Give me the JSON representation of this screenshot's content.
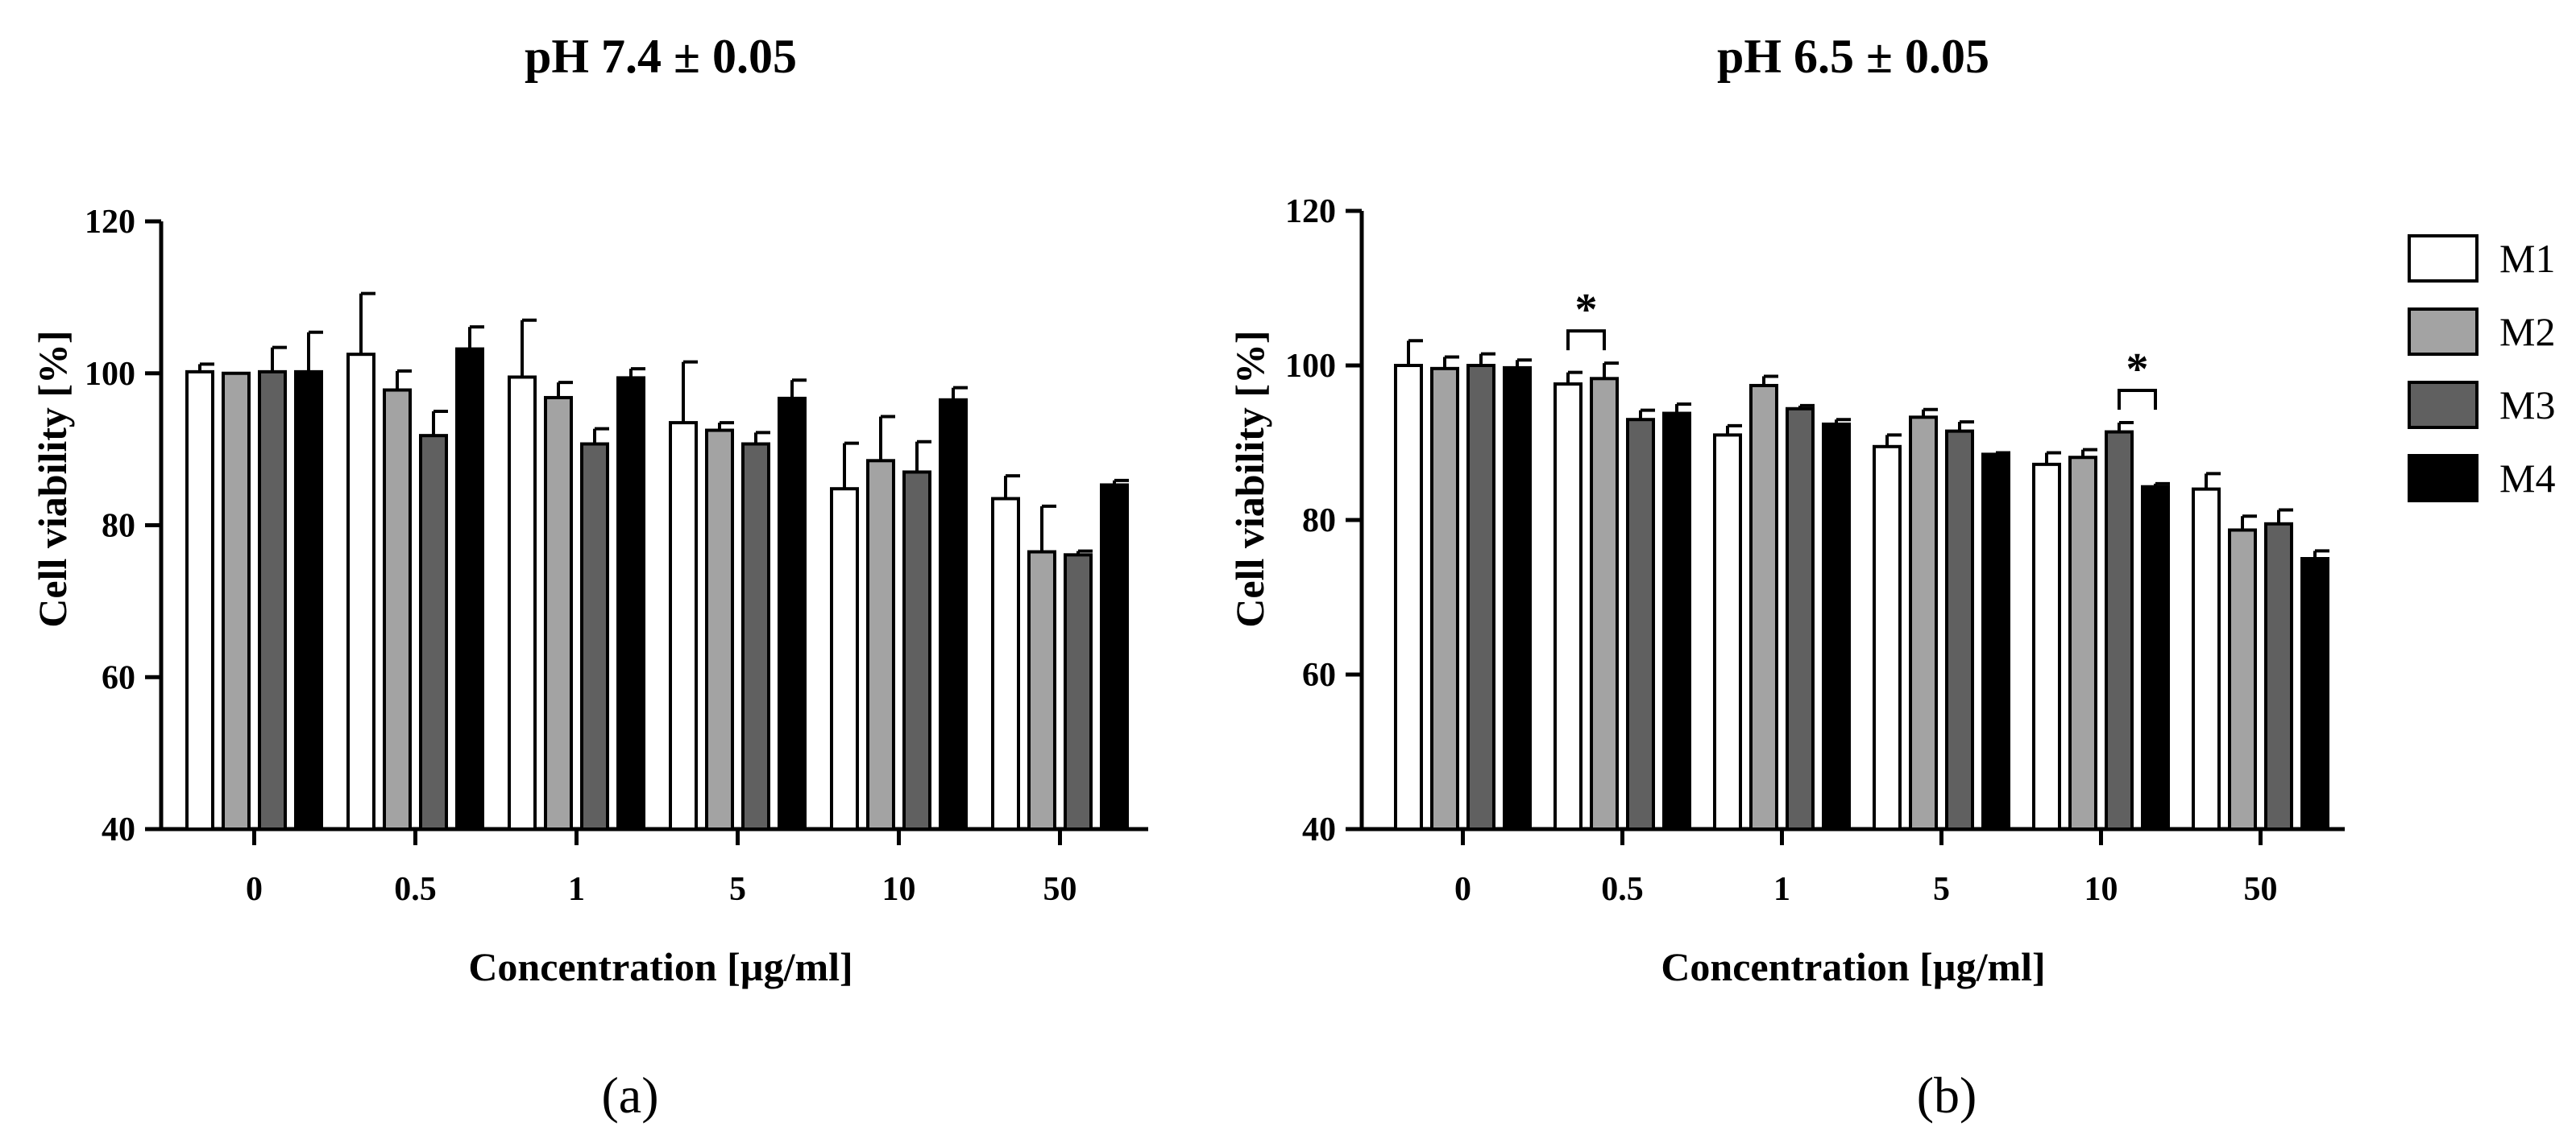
{
  "chart_data": [
    {
      "type": "bar",
      "title": "pH 7.4 ± 0.05",
      "panel_label": "(a)",
      "xlabel": "Concentration [µg/ml]",
      "ylabel": "Cell viability [%]",
      "ylim": [
        40,
        120
      ],
      "yticks": [
        40,
        60,
        80,
        100,
        120
      ],
      "categories": [
        "0",
        "0.5",
        "1",
        "5",
        "10",
        "50"
      ],
      "series": [
        {
          "name": "M1",
          "color": "#ffffff",
          "values": [
            100.2,
            102.5,
            99.5,
            93.5,
            84.8,
            83.5
          ],
          "errors": [
            1.0,
            8.0,
            7.5,
            8.0,
            6.0,
            3.0
          ]
        },
        {
          "name": "M2",
          "color": "#a3a3a3",
          "values": [
            100.0,
            97.8,
            96.8,
            92.5,
            88.5,
            76.5
          ],
          "errors": [
            0.0,
            2.5,
            2.0,
            1.0,
            5.8,
            6.0
          ]
        },
        {
          "name": "M3",
          "color": "#606060",
          "values": [
            100.2,
            91.8,
            90.7,
            90.7,
            87.0,
            76.1
          ],
          "errors": [
            3.2,
            3.2,
            2.0,
            1.5,
            4.0,
            0.5
          ]
        },
        {
          "name": "M4",
          "color": "#000000",
          "values": [
            100.2,
            103.2,
            99.4,
            96.7,
            96.5,
            85.3
          ],
          "errors": [
            5.2,
            2.9,
            1.2,
            2.4,
            1.6,
            0.6
          ]
        }
      ],
      "significance": []
    },
    {
      "type": "bar",
      "title": "pH 6.5 ± 0.05",
      "panel_label": "(b)",
      "xlabel": "Concentration [µg/ml]",
      "ylabel": "Cell viability [%]",
      "ylim": [
        40,
        120
      ],
      "yticks": [
        40,
        60,
        80,
        100,
        120
      ],
      "categories": [
        "0",
        "0.5",
        "1",
        "5",
        "10",
        "50"
      ],
      "series": [
        {
          "name": "M1",
          "color": "#ffffff",
          "values": [
            100.0,
            97.6,
            91.0,
            89.5,
            87.2,
            84.0
          ],
          "errors": [
            3.2,
            1.5,
            1.2,
            1.5,
            1.5,
            2.0
          ]
        },
        {
          "name": "M2",
          "color": "#a3a3a3",
          "values": [
            99.6,
            98.3,
            97.4,
            93.3,
            88.1,
            78.7
          ],
          "errors": [
            1.5,
            2.0,
            1.2,
            1.0,
            1.0,
            1.8
          ]
        },
        {
          "name": "M3",
          "color": "#606060",
          "values": [
            100.0,
            93.0,
            94.4,
            91.5,
            91.4,
            79.5
          ],
          "errors": [
            1.5,
            1.2,
            0.4,
            1.2,
            1.2,
            1.8
          ]
        },
        {
          "name": "M4",
          "color": "#000000",
          "values": [
            99.7,
            93.8,
            92.4,
            88.5,
            84.3,
            75.0
          ],
          "errors": [
            1.0,
            1.2,
            0.6,
            0.2,
            0.4,
            1.0
          ]
        }
      ],
      "significance": [
        {
          "category": 1,
          "from": 0,
          "to": 1,
          "label": "*"
        },
        {
          "category": 4,
          "from": 2,
          "to": 3,
          "label": "*"
        }
      ]
    }
  ],
  "legend": [
    {
      "label": "M1",
      "color": "#ffffff"
    },
    {
      "label": "M2",
      "color": "#a3a3a3"
    },
    {
      "label": "M3",
      "color": "#606060"
    },
    {
      "label": "M4",
      "color": "#000000"
    }
  ]
}
